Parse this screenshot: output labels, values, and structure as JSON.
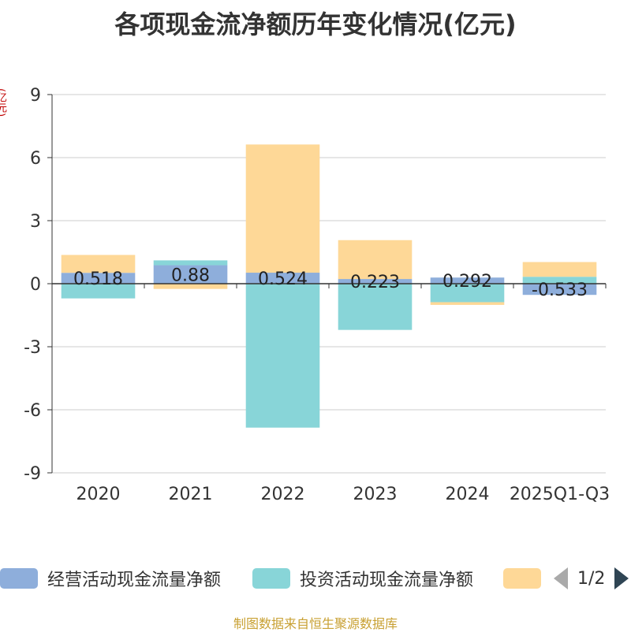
{
  "title": "各项现金流净额历年变化情况(亿元)",
  "unit_label": "(亿元)",
  "source": "制图数据来自恒生聚源数据库",
  "legend": {
    "items": [
      {
        "label": "经营活动现金流量净额",
        "color": "#8eaedb"
      },
      {
        "label": "投资活动现金流量净额",
        "color": "#88d5d8"
      },
      {
        "label": "",
        "color": "#fed897"
      }
    ],
    "page": "1/2"
  },
  "chart_data": {
    "type": "bar",
    "stacked": true,
    "title": "各项现金流净额历年变化情况(亿元)",
    "ylabel": "(亿元)",
    "categories": [
      "2020",
      "2021",
      "2022",
      "2023",
      "2024",
      "2025Q1-Q3"
    ],
    "ylim": [
      -9,
      9
    ],
    "yticks": [
      9,
      6,
      3,
      0,
      -3,
      -6,
      -9
    ],
    "grid": true,
    "series": [
      {
        "name": "经营活动现金流量净额",
        "color": "#8eaedb",
        "values": [
          0.518,
          0.88,
          0.524,
          0.223,
          0.292,
          -0.533
        ]
      },
      {
        "name": "投资活动现金流量净额",
        "color": "#88d5d8",
        "values": [
          -0.7,
          0.23,
          -6.85,
          -2.2,
          -0.88,
          0.33
        ]
      },
      {
        "name": "",
        "color": "#fed897",
        "values": [
          0.85,
          -0.25,
          6.1,
          1.85,
          -0.13,
          0.7
        ]
      }
    ],
    "data_labels": [
      "0.518",
      "0.88",
      "0.524",
      "0.223",
      "0.292",
      "-0.533"
    ]
  }
}
